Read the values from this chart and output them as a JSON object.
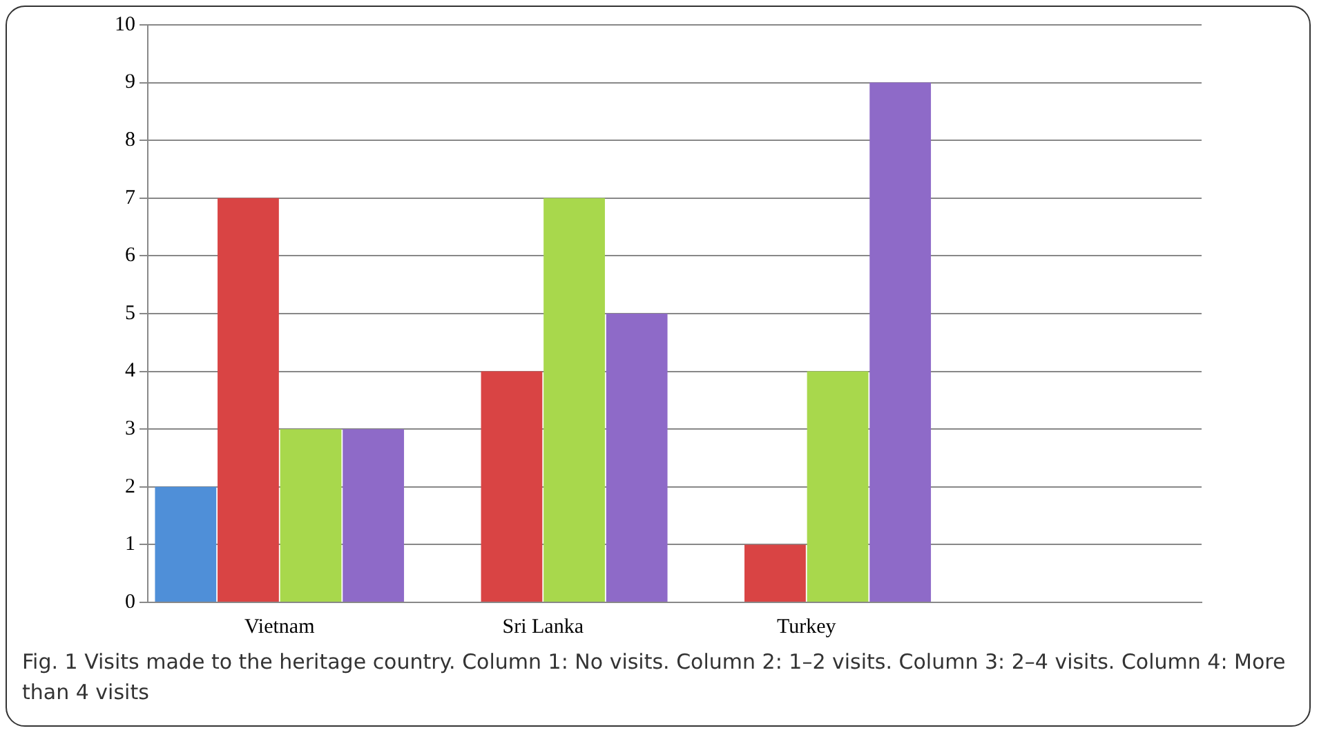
{
  "chart_data": {
    "type": "bar",
    "categories": [
      "Vietnam",
      "Sri Lanka",
      "Turkey",
      null
    ],
    "series": [
      {
        "color": "#4f8fd8",
        "values": [
          2,
          0,
          0,
          null
        ]
      },
      {
        "color": "#d94444",
        "values": [
          7,
          4,
          1,
          null
        ]
      },
      {
        "color": "#a8d84c",
        "values": [
          3,
          7,
          4,
          null
        ]
      },
      {
        "color": "#8e6ac8",
        "values": [
          3,
          5,
          9,
          null
        ]
      }
    ],
    "ylim": [
      0,
      10
    ],
    "yticks": [
      0,
      1,
      2,
      3,
      4,
      5,
      6,
      7,
      8,
      9,
      10
    ],
    "grid": "y",
    "legend": false,
    "annotations": [
      "Fig. 1 Visits made to the heritage country. Column 1: No visits. Column 2: 1–2 visits. Column 3: 2–4 visits. Column 4: More than 4 visits"
    ]
  }
}
